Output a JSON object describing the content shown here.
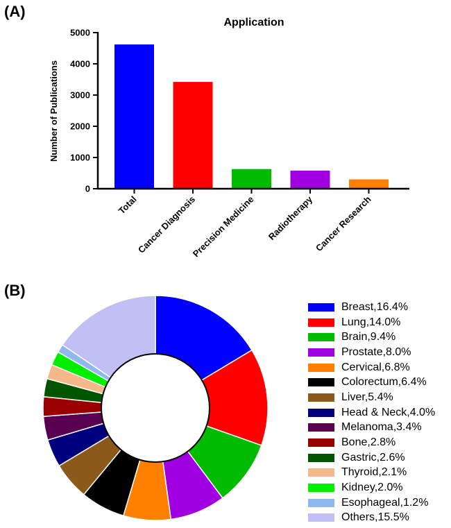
{
  "panels": {
    "a": "(A)",
    "b": "(B)"
  },
  "chart_data": [
    {
      "type": "bar",
      "title": "Application",
      "xlabel": "",
      "ylabel": "Number of Publications",
      "categories": [
        "Total",
        "Cancer Diagnosis",
        "Precision Medicine",
        "Radiotherapy",
        "Cancer Research"
      ],
      "values": [
        4620,
        3420,
        630,
        580,
        300
      ],
      "colors": [
        "#0000ff",
        "#ff0000",
        "#00bb00",
        "#a000e0",
        "#ff7f00"
      ],
      "ylim": [
        0,
        5000
      ],
      "yticks": [
        "0",
        "1000",
        "2000",
        "3000",
        "4000",
        "5000"
      ],
      "grid": false
    },
    {
      "type": "pie",
      "donut": true,
      "legend_position": "right",
      "slices": [
        {
          "label": "Breast,16.4%",
          "value": 16.4,
          "color": "#0000ff"
        },
        {
          "label": "Lung,14.0%",
          "value": 14.0,
          "color": "#ff0000"
        },
        {
          "label": "Brain,9.4%",
          "value": 9.4,
          "color": "#00bb00"
        },
        {
          "label": "Prostate,8.0%",
          "value": 8.0,
          "color": "#a000e0"
        },
        {
          "label": "Cervical,6.8%",
          "value": 6.8,
          "color": "#ff7f00"
        },
        {
          "label": "Colorectum,6.4%",
          "value": 6.4,
          "color": "#000000"
        },
        {
          "label": "Liver,5.4%",
          "value": 5.4,
          "color": "#8b5a1a"
        },
        {
          "label": "Head & Neck,4.0%",
          "value": 4.0,
          "color": "#00007f"
        },
        {
          "label": "Melanoma,3.4%",
          "value": 3.4,
          "color": "#5a0050"
        },
        {
          "label": "Bone,2.8%",
          "value": 2.8,
          "color": "#990000"
        },
        {
          "label": "Gastric,2.6%",
          "value": 2.6,
          "color": "#005500"
        },
        {
          "label": "Thyroid,2.1%",
          "value": 2.1,
          "color": "#f5b88a"
        },
        {
          "label": "Kidney,2.0%",
          "value": 2.0,
          "color": "#00ee00"
        },
        {
          "label": "Esophageal,1.2%",
          "value": 1.2,
          "color": "#8fb8f0"
        },
        {
          "label": "Others,15.5%",
          "value": 15.5,
          "color": "#c0c0f5"
        }
      ]
    }
  ]
}
